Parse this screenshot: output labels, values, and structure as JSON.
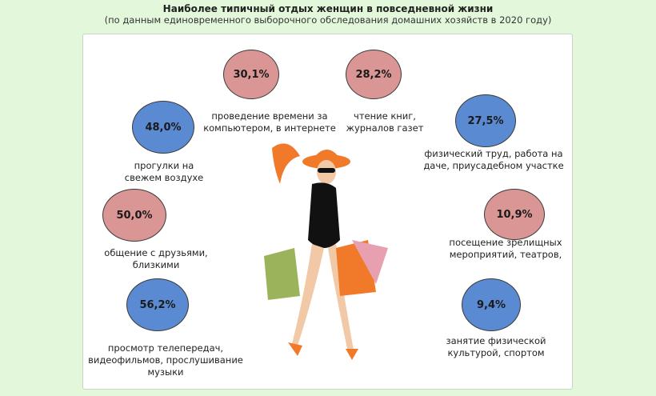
{
  "header": {
    "title": "Наиболее типичный отдых женщин в повседневной жизни",
    "subtitle": "(по данным единовременного выборочного обследования домашних хозяйств в 2020 году)"
  },
  "colors": {
    "pink": "#d99694",
    "blue": "#5a8ad2",
    "background": "#e3f8da"
  },
  "items": [
    {
      "value": "30,1%",
      "label": [
        "проведение времени за",
        "компьютером, в интернете"
      ]
    },
    {
      "value": "28,2%",
      "label": [
        "чтение книг,",
        "журналов газет"
      ]
    },
    {
      "value": "48,0%",
      "label": [
        "прогулки на",
        "свежем воздухе"
      ]
    },
    {
      "value": "27,5%",
      "label": [
        "физический труд, работа на",
        "даче, приусадебном участке"
      ]
    },
    {
      "value": "50,0%",
      "label": [
        "общение с друзьями,",
        "близкими"
      ]
    },
    {
      "value": "10,9%",
      "label": [
        "посещение зрелищных",
        "мероприятий, театров,"
      ]
    },
    {
      "value": "56,2%",
      "label": [
        "просмотр телепередач,",
        "видеофильмов, прослушивание",
        "музыки"
      ]
    },
    {
      "value": "9,4%",
      "label": [
        "занятие физической",
        "культурой, спортом"
      ]
    }
  ]
}
